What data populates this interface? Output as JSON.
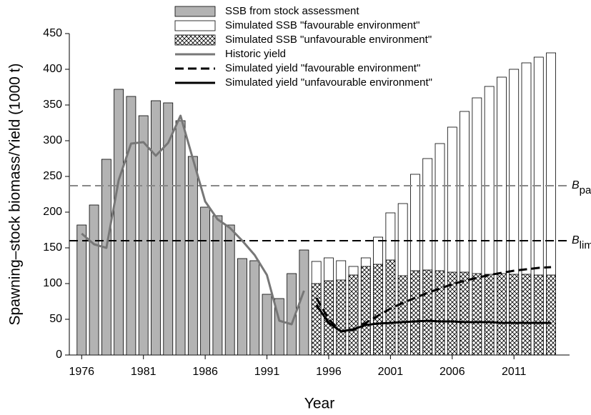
{
  "chart_data": {
    "type": "bar-line",
    "x_label": "Year",
    "y_label": "Spawning–stock biomass/Yield (1000 t)",
    "x": [
      1976,
      1977,
      1978,
      1979,
      1980,
      1981,
      1982,
      1983,
      1984,
      1985,
      1986,
      1987,
      1988,
      1989,
      1990,
      1991,
      1992,
      1993,
      1994,
      1995,
      1996,
      1997,
      1998,
      1999,
      2000,
      2001,
      2002,
      2003,
      2004,
      2005,
      2006,
      2007,
      2008,
      2009,
      2010,
      2011,
      2012,
      2013,
      2014
    ],
    "xlim": [
      1975,
      2015.5
    ],
    "xticks": [
      1976,
      1981,
      1986,
      1991,
      1996,
      2001,
      2006,
      2011
    ],
    "ylim": [
      0,
      450
    ],
    "yticks": [
      0,
      50,
      100,
      150,
      200,
      250,
      300,
      350,
      400,
      450
    ],
    "legend": "top",
    "series": [
      {
        "name": "SSB from stock assessment",
        "type": "bar",
        "color": "#b3b3b3",
        "values": [
          182,
          210,
          274,
          372,
          362,
          335,
          356,
          353,
          328,
          278,
          207,
          195,
          182,
          135,
          132,
          85,
          79,
          114,
          147,
          null,
          null,
          null,
          null,
          null,
          null,
          null,
          null,
          null,
          null,
          null,
          null,
          null,
          null,
          null,
          null,
          null,
          null,
          null,
          null
        ]
      },
      {
        "name": "Simulated SSB \"favourable environment\"",
        "type": "bar",
        "color": "#ffffff",
        "values": [
          null,
          null,
          null,
          null,
          null,
          null,
          null,
          null,
          null,
          null,
          null,
          null,
          null,
          null,
          null,
          null,
          null,
          null,
          null,
          131,
          136,
          132,
          124,
          136,
          165,
          199,
          212,
          253,
          275,
          296,
          319,
          341,
          360,
          376,
          389,
          400,
          409,
          417,
          423
        ]
      },
      {
        "name": "Simulated SSB \"unfavourable environment\"",
        "type": "bar",
        "color": "hatch",
        "values": [
          null,
          null,
          null,
          null,
          null,
          null,
          null,
          null,
          null,
          null,
          null,
          null,
          null,
          null,
          null,
          null,
          null,
          null,
          null,
          100,
          104,
          105,
          112,
          124,
          127,
          133,
          111,
          118,
          119,
          118,
          116,
          116,
          114,
          113,
          114,
          113,
          113,
          112,
          112
        ]
      },
      {
        "name": "Historic yield",
        "type": "line",
        "color": "#777777",
        "dash": false,
        "values": [
          170,
          155,
          150,
          245,
          296,
          298,
          279,
          297,
          335,
          275,
          215,
          190,
          178,
          160,
          140,
          112,
          48,
          43,
          90,
          null,
          null,
          null,
          null,
          null,
          null,
          null,
          null,
          null,
          null,
          null,
          null,
          null,
          null,
          null,
          null,
          null,
          null,
          null,
          null
        ]
      },
      {
        "name": "Simulated yield \"favourable environment\"",
        "type": "line",
        "color": "#000000",
        "dash": true,
        "values": [
          null,
          null,
          null,
          null,
          null,
          null,
          null,
          null,
          null,
          null,
          null,
          null,
          null,
          null,
          null,
          null,
          null,
          null,
          null,
          80,
          50,
          33,
          35,
          45,
          55,
          65,
          73,
          80,
          87,
          93,
          99,
          104,
          108,
          112,
          115,
          118,
          120,
          122,
          123
        ]
      },
      {
        "name": "Simulated yield \"unfavourable environment\"",
        "type": "line",
        "color": "#000000",
        "dash": false,
        "values": [
          null,
          null,
          null,
          null,
          null,
          null,
          null,
          null,
          null,
          null,
          null,
          null,
          null,
          null,
          null,
          null,
          null,
          null,
          null,
          70,
          45,
          33,
          36,
          42,
          44,
          45,
          46,
          47,
          48,
          47,
          47,
          46,
          46,
          46,
          45,
          45,
          45,
          45,
          45
        ]
      }
    ],
    "reference_lines": [
      {
        "label": "B",
        "subscript": "pa",
        "value": 237,
        "color": "#888888"
      },
      {
        "label": "B",
        "subscript": "lim",
        "value": 160,
        "color": "#000000"
      }
    ]
  }
}
